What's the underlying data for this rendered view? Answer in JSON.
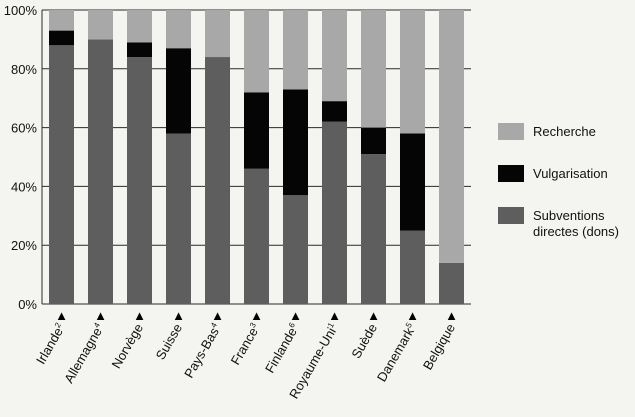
{
  "chart_data": {
    "type": "bar",
    "stacked": true,
    "normalized_percent": true,
    "categories": [
      "Irlande",
      "Allemagne",
      "Norvège",
      "Suisse",
      "Pays-Bas",
      "France",
      "Finlande",
      "Royaume-Uni",
      "Suède",
      "Danemark",
      "Belgique"
    ],
    "category_superscripts": [
      "2",
      "4",
      "",
      "",
      "4",
      "3",
      "6",
      "1",
      "",
      "5",
      ""
    ],
    "series": [
      {
        "name": "Subventions directes (dons)",
        "color": "#5e5e5e",
        "values": [
          88,
          90,
          84,
          58,
          84,
          46,
          37,
          62,
          51,
          25,
          14
        ]
      },
      {
        "name": "Vulgarisation",
        "color": "#050505",
        "values": [
          5,
          0,
          5,
          29,
          0,
          26,
          36,
          7,
          9,
          33,
          0
        ]
      },
      {
        "name": "Recherche",
        "color": "#a8a8a8",
        "values": [
          7,
          10,
          11,
          13,
          16,
          28,
          27,
          31,
          40,
          42,
          86
        ]
      }
    ],
    "legend": {
      "position": "right",
      "order": [
        "Recherche",
        "Vulgarisation",
        "Subventions directes (dons)"
      ],
      "labels": [
        "Recherche",
        "Vulgarisation",
        "Subventions directes (dons)"
      ]
    },
    "ylim": [
      0,
      100
    ],
    "yticks": [
      "0%",
      "20%",
      "40%",
      "60%",
      "80%",
      "100%"
    ],
    "grid": true,
    "marker": "▲",
    "title": "",
    "xlabel": "",
    "ylabel": ""
  }
}
